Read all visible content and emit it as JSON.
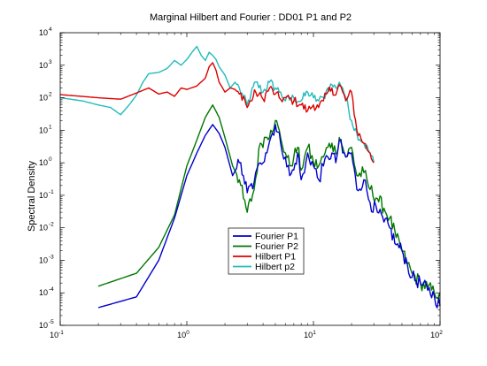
{
  "chart_data": {
    "type": "line",
    "title": "Marginal Hilbert and Fourier : DD01 P1 and P2",
    "xlabel": "",
    "ylabel": "Spectral Density",
    "xscale": "log",
    "yscale": "log",
    "xlim": [
      0.1,
      100
    ],
    "ylim": [
      1e-05,
      10000
    ],
    "grid": false,
    "legend_position": "lower-center",
    "x_ticks": [
      {
        "base": "10",
        "exp": "-1"
      },
      {
        "base": "10",
        "exp": "0"
      },
      {
        "base": "10",
        "exp": "1"
      },
      {
        "base": "10",
        "exp": "2"
      }
    ],
    "y_ticks": [
      {
        "base": "10",
        "exp": "-5"
      },
      {
        "base": "10",
        "exp": "-4"
      },
      {
        "base": "10",
        "exp": "-3"
      },
      {
        "base": "10",
        "exp": "-2"
      },
      {
        "base": "10",
        "exp": "-1"
      },
      {
        "base": "10",
        "exp": "0"
      },
      {
        "base": "10",
        "exp": "1"
      },
      {
        "base": "10",
        "exp": "2"
      },
      {
        "base": "10",
        "exp": "3"
      },
      {
        "base": "10",
        "exp": "4"
      }
    ],
    "series": [
      {
        "name": "Fourier P1",
        "color": "#0000cc",
        "points": [
          [
            0.2,
            3.5e-05
          ],
          [
            0.4,
            7.5e-05
          ],
          [
            0.6,
            0.001
          ],
          [
            0.8,
            0.02
          ],
          [
            1.0,
            0.4
          ],
          [
            1.2,
            2
          ],
          [
            1.4,
            7
          ],
          [
            1.6,
            15
          ],
          [
            1.8,
            8
          ],
          [
            2.0,
            3
          ],
          [
            2.3,
            0.4
          ],
          [
            2.6,
            1
          ],
          [
            2.8,
            0.4
          ],
          [
            3.0,
            0.12
          ],
          [
            3.4,
            0.25
          ],
          [
            3.8,
            1
          ],
          [
            4.2,
            2
          ],
          [
            4.6,
            6
          ],
          [
            5.0,
            15
          ],
          [
            5.5,
            4
          ],
          [
            6.0,
            1.5
          ],
          [
            6.5,
            0.4
          ],
          [
            7.0,
            0.6
          ],
          [
            7.5,
            2
          ],
          [
            8.0,
            0.3
          ],
          [
            8.5,
            0.5
          ],
          [
            9.0,
            2
          ],
          [
            10,
            0.8
          ],
          [
            11,
            0.3
          ],
          [
            12,
            0.8
          ],
          [
            13,
            1.5
          ],
          [
            14,
            2
          ],
          [
            15,
            1
          ],
          [
            16,
            5
          ],
          [
            17,
            2
          ],
          [
            18,
            1.5
          ],
          [
            20,
            2
          ],
          [
            22,
            0.15
          ],
          [
            25,
            0.3
          ],
          [
            28,
            0.06
          ],
          [
            32,
            0.03
          ],
          [
            36,
            0.015
          ],
          [
            40,
            0.01
          ],
          [
            45,
            0.003
          ],
          [
            50,
            0.002
          ],
          [
            55,
            0.0008
          ],
          [
            60,
            0.0003
          ],
          [
            70,
            0.0002
          ],
          [
            80,
            0.00012
          ],
          [
            90,
            8e-05
          ],
          [
            100,
            4e-05
          ]
        ]
      },
      {
        "name": "Fourier P2",
        "color": "#007700",
        "points": [
          [
            0.2,
            0.00016
          ],
          [
            0.4,
            0.0004
          ],
          [
            0.6,
            0.0025
          ],
          [
            0.8,
            0.025
          ],
          [
            1.0,
            0.8
          ],
          [
            1.2,
            5
          ],
          [
            1.4,
            25
          ],
          [
            1.6,
            60
          ],
          [
            1.8,
            25
          ],
          [
            2.0,
            6
          ],
          [
            2.3,
            0.8
          ],
          [
            2.6,
            0.3
          ],
          [
            2.8,
            0.08
          ],
          [
            3.0,
            0.03
          ],
          [
            3.4,
            0.15
          ],
          [
            3.8,
            4
          ],
          [
            4.2,
            6
          ],
          [
            4.6,
            10
          ],
          [
            5.0,
            20
          ],
          [
            5.5,
            6
          ],
          [
            6.0,
            2
          ],
          [
            6.5,
            0.8
          ],
          [
            7.0,
            1.5
          ],
          [
            7.5,
            3
          ],
          [
            8.0,
            0.6
          ],
          [
            8.5,
            1.5
          ],
          [
            9.0,
            3
          ],
          [
            10,
            1
          ],
          [
            11,
            0.8
          ],
          [
            12,
            1.5
          ],
          [
            13,
            3
          ],
          [
            14,
            4
          ],
          [
            15,
            2
          ],
          [
            16,
            6
          ],
          [
            17,
            3
          ],
          [
            18,
            1.5
          ],
          [
            20,
            3
          ],
          [
            22,
            0.4
          ],
          [
            25,
            0.5
          ],
          [
            28,
            0.15
          ],
          [
            32,
            0.08
          ],
          [
            36,
            0.04
          ],
          [
            40,
            0.02
          ],
          [
            45,
            0.005
          ],
          [
            50,
            0.002
          ],
          [
            55,
            0.0008
          ],
          [
            60,
            0.0004
          ],
          [
            70,
            0.0002
          ],
          [
            80,
            0.00015
          ],
          [
            90,
            0.0001
          ],
          [
            100,
            0.0001
          ]
        ]
      },
      {
        "name": "Hilbert P1",
        "color": "#dd0000",
        "points": [
          [
            0.1,
            125
          ],
          [
            0.2,
            100
          ],
          [
            0.3,
            90
          ],
          [
            0.4,
            140
          ],
          [
            0.5,
            200
          ],
          [
            0.6,
            130
          ],
          [
            0.7,
            150
          ],
          [
            0.8,
            110
          ],
          [
            0.9,
            200
          ],
          [
            1.0,
            180
          ],
          [
            1.2,
            230
          ],
          [
            1.4,
            400
          ],
          [
            1.5,
            900
          ],
          [
            1.6,
            1200
          ],
          [
            1.7,
            700
          ],
          [
            1.8,
            300
          ],
          [
            2.0,
            150
          ],
          [
            2.2,
            200
          ],
          [
            2.4,
            180
          ],
          [
            2.6,
            130
          ],
          [
            2.8,
            110
          ],
          [
            3.0,
            50
          ],
          [
            3.2,
            80
          ],
          [
            3.5,
            150
          ],
          [
            4.0,
            90
          ],
          [
            4.5,
            200
          ],
          [
            5.0,
            130
          ],
          [
            5.5,
            90
          ],
          [
            6.0,
            100
          ],
          [
            7.0,
            80
          ],
          [
            8.0,
            60
          ],
          [
            9.0,
            40
          ],
          [
            10,
            60
          ],
          [
            11,
            50
          ],
          [
            12,
            80
          ],
          [
            13,
            150
          ],
          [
            14,
            200
          ],
          [
            15,
            120
          ],
          [
            16,
            250
          ],
          [
            17,
            150
          ],
          [
            18,
            80
          ],
          [
            20,
            150
          ],
          [
            22,
            10
          ],
          [
            25,
            4
          ],
          [
            28,
            2
          ],
          [
            30,
            1
          ]
        ]
      },
      {
        "name": "Hilbert p2",
        "color": "#22bbbb",
        "points": [
          [
            0.1,
            100
          ],
          [
            0.15,
            80
          ],
          [
            0.2,
            60
          ],
          [
            0.25,
            50
          ],
          [
            0.3,
            30
          ],
          [
            0.35,
            60
          ],
          [
            0.4,
            120
          ],
          [
            0.45,
            300
          ],
          [
            0.5,
            550
          ],
          [
            0.6,
            600
          ],
          [
            0.7,
            800
          ],
          [
            0.8,
            1400
          ],
          [
            0.9,
            1000
          ],
          [
            1.0,
            1500
          ],
          [
            1.1,
            2500
          ],
          [
            1.2,
            3800
          ],
          [
            1.3,
            2000
          ],
          [
            1.4,
            1400
          ],
          [
            1.5,
            2500
          ],
          [
            1.6,
            2000
          ],
          [
            1.7,
            1500
          ],
          [
            1.8,
            900
          ],
          [
            2.0,
            500
          ],
          [
            2.2,
            200
          ],
          [
            2.4,
            300
          ],
          [
            2.6,
            200
          ],
          [
            2.8,
            100
          ],
          [
            3.0,
            60
          ],
          [
            3.2,
            120
          ],
          [
            3.5,
            300
          ],
          [
            4.0,
            150
          ],
          [
            4.5,
            300
          ],
          [
            5.0,
            200
          ],
          [
            5.5,
            150
          ],
          [
            6.0,
            80
          ],
          [
            7.0,
            100
          ],
          [
            8.0,
            80
          ],
          [
            9.0,
            150
          ],
          [
            10,
            100
          ],
          [
            11,
            80
          ],
          [
            12,
            100
          ],
          [
            13,
            200
          ],
          [
            14,
            250
          ],
          [
            15,
            200
          ],
          [
            16,
            300
          ],
          [
            17,
            200
          ],
          [
            18,
            100
          ],
          [
            20,
            20
          ],
          [
            22,
            8
          ],
          [
            25,
            4
          ],
          [
            28,
            2
          ],
          [
            30,
            1
          ]
        ]
      }
    ]
  }
}
